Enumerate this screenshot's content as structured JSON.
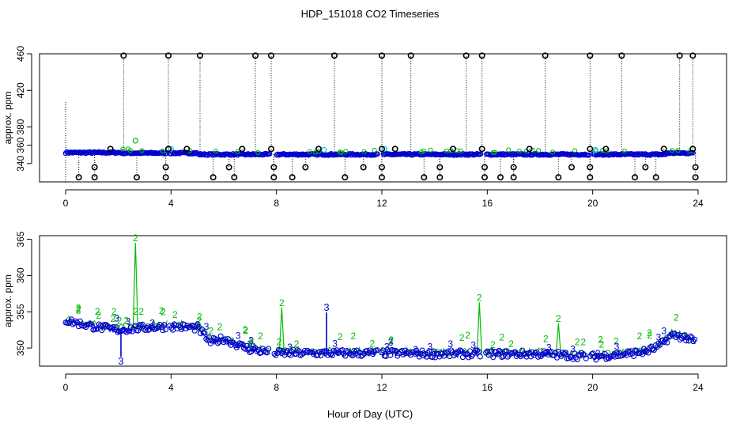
{
  "title": "HDP_151018  CO2 Timeseries",
  "xlabel": "Hour of Day (UTC)",
  "colors": {
    "outlier": "#000000",
    "blue": "#0000cc",
    "green": "#00bb00",
    "cyan": "#00cccc"
  },
  "chart_data": [
    {
      "type": "scatter",
      "ylabel": "approx. ppm",
      "xlim": [
        0,
        24
      ],
      "ylim": [
        320,
        460
      ],
      "xticks": [
        0,
        4,
        8,
        12,
        16,
        20,
        24
      ],
      "yticks": [
        340,
        380,
        420,
        460
      ],
      "yticks_small": [
        360
      ],
      "outliers_high": [
        2.2,
        3.9,
        5.1,
        7.2,
        7.8,
        10.2,
        12.0,
        13.1,
        15.2,
        15.8,
        18.2,
        19.9,
        21.1,
        23.3,
        23.8
      ],
      "outliers_low": [
        0.5,
        1.1,
        2.7,
        3.8,
        5.6,
        6.4,
        7.9,
        8.6,
        10.6,
        12.0,
        13.6,
        14.2,
        15.9,
        16.5,
        17.0,
        18.7,
        19.9,
        21.6,
        22.4,
        23.9
      ],
      "outliers_336": [
        1.1,
        3.8,
        6.2,
        7.9,
        9.1,
        11.3,
        12.0,
        14.2,
        15.9,
        17.0,
        19.2,
        19.9,
        22.0,
        23.9
      ],
      "outliers_356": [
        1.7,
        3.9,
        4.6,
        6.7,
        7.8,
        9.6,
        12.0,
        12.5,
        14.7,
        15.8,
        17.6,
        19.9,
        20.5,
        22.7,
        23.8
      ]
    },
    {
      "type": "scatter",
      "ylabel": "approx. ppm",
      "xlim": [
        0,
        24
      ],
      "ylim": [
        347.5,
        365.5
      ],
      "xticks": [
        0,
        4,
        8,
        12,
        16,
        20,
        24
      ],
      "yticks": [
        350,
        355,
        360,
        365
      ],
      "label_markers": [
        "2",
        "3"
      ],
      "green_spikes": [
        {
          "x": 2.65,
          "y": 364.5
        },
        {
          "x": 8.2,
          "y": 355.6
        },
        {
          "x": 15.7,
          "y": 356.3
        },
        {
          "x": 18.7,
          "y": 353.4
        }
      ],
      "blue_spikes": [
        {
          "x": 9.9,
          "y": 354.9
        },
        {
          "x": 2.1,
          "y": 348.8
        }
      ],
      "baseline": [
        {
          "x": 0.0,
          "y": 353.8
        },
        {
          "x": 1.0,
          "y": 353.0
        },
        {
          "x": 2.0,
          "y": 352.5
        },
        {
          "x": 3.0,
          "y": 352.8
        },
        {
          "x": 4.0,
          "y": 353.0
        },
        {
          "x": 5.0,
          "y": 352.8
        },
        {
          "x": 5.5,
          "y": 350.8
        },
        {
          "x": 6.0,
          "y": 351.3
        },
        {
          "x": 6.5,
          "y": 350.5
        },
        {
          "x": 7.0,
          "y": 349.8
        },
        {
          "x": 8.0,
          "y": 349.3
        },
        {
          "x": 10.0,
          "y": 349.3
        },
        {
          "x": 12.0,
          "y": 349.3
        },
        {
          "x": 14.0,
          "y": 349.2
        },
        {
          "x": 16.0,
          "y": 349.2
        },
        {
          "x": 18.0,
          "y": 349.2
        },
        {
          "x": 19.0,
          "y": 349.0
        },
        {
          "x": 20.0,
          "y": 348.8
        },
        {
          "x": 21.0,
          "y": 349.1
        },
        {
          "x": 22.0,
          "y": 349.5
        },
        {
          "x": 22.5,
          "y": 350.2
        },
        {
          "x": 23.0,
          "y": 351.8
        },
        {
          "x": 23.5,
          "y": 351.5
        },
        {
          "x": 23.9,
          "y": 350.8
        }
      ]
    }
  ]
}
